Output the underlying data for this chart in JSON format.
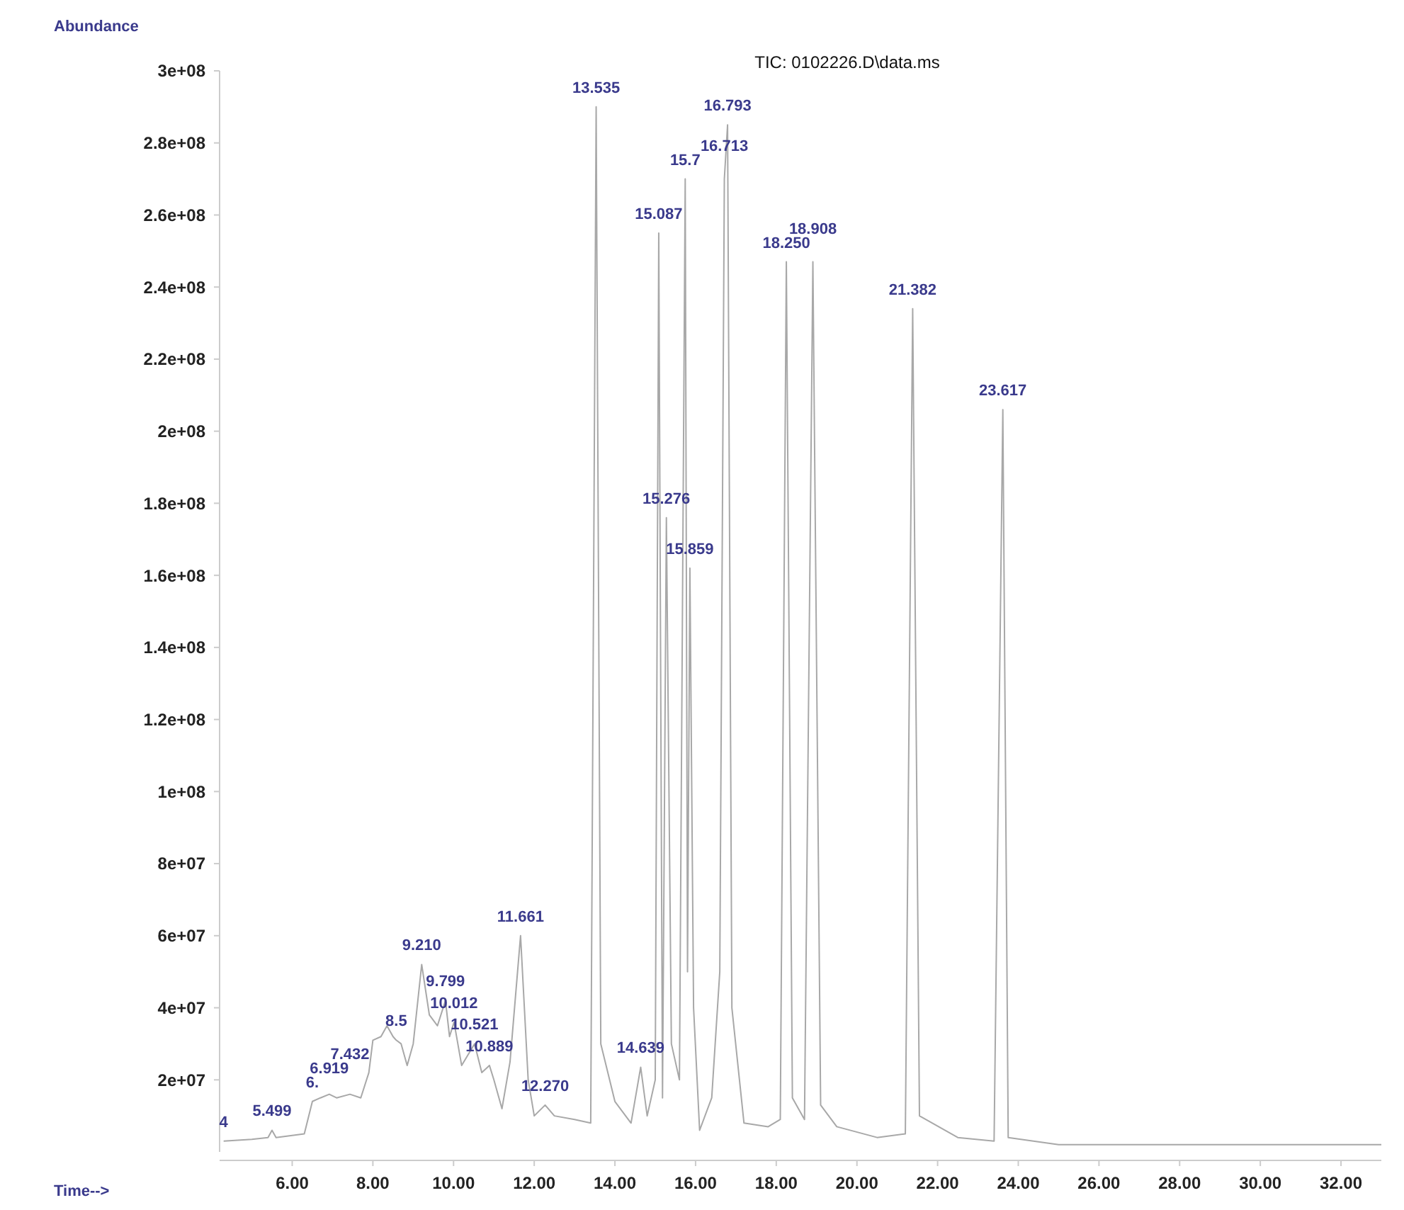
{
  "chart_data": {
    "type": "line",
    "title": "TIC: 0102226.D\\data.ms",
    "xlabel": "Time-->",
    "ylabel": "Abundance",
    "xlim": [
      4.2,
      33
    ],
    "ylim": [
      0,
      300000000
    ],
    "xticks": [
      {
        "value": 6,
        "label": "6.00"
      },
      {
        "value": 8,
        "label": "8.00"
      },
      {
        "value": 10,
        "label": "10.00"
      },
      {
        "value": 12,
        "label": "12.00"
      },
      {
        "value": 14,
        "label": "14.00"
      },
      {
        "value": 16,
        "label": "16.00"
      },
      {
        "value": 18,
        "label": "18.00"
      },
      {
        "value": 20,
        "label": "20.00"
      },
      {
        "value": 22,
        "label": "22.00"
      },
      {
        "value": 24,
        "label": "24.00"
      },
      {
        "value": 26,
        "label": "26.00"
      },
      {
        "value": 28,
        "label": "28.00"
      },
      {
        "value": 30,
        "label": "30.00"
      },
      {
        "value": 32,
        "label": "32.00"
      }
    ],
    "yticks": [
      {
        "value": 20000000,
        "label": "2e+07"
      },
      {
        "value": 40000000,
        "label": "4e+07"
      },
      {
        "value": 60000000,
        "label": "6e+07"
      },
      {
        "value": 80000000,
        "label": "8e+07"
      },
      {
        "value": 100000000,
        "label": "1e+08"
      },
      {
        "value": 120000000,
        "label": "1.2e+08"
      },
      {
        "value": 140000000,
        "label": "1.4e+08"
      },
      {
        "value": 160000000,
        "label": "1.6e+08"
      },
      {
        "value": 180000000,
        "label": "1.8e+08"
      },
      {
        "value": 200000000,
        "label": "2e+08"
      },
      {
        "value": 220000000,
        "label": "2.2e+08"
      },
      {
        "value": 240000000,
        "label": "2.4e+08"
      },
      {
        "value": 260000000,
        "label": "2.6e+08"
      },
      {
        "value": 280000000,
        "label": "2.8e+08"
      },
      {
        "value": 300000000,
        "label": "3e+08"
      }
    ],
    "grid": false,
    "series": [
      {
        "color": "#a8a8a8",
        "x": [
          4.3,
          5.0,
          5.4,
          5.499,
          5.6,
          6.3,
          6.5,
          6.7,
          6.919,
          7.1,
          7.432,
          7.7,
          7.9,
          8.0,
          8.2,
          8.35,
          8.5,
          8.58,
          8.7,
          8.85,
          9.0,
          9.21,
          9.4,
          9.6,
          9.799,
          9.9,
          10.012,
          10.2,
          10.521,
          10.7,
          10.889,
          11.0,
          11.2,
          11.4,
          11.661,
          11.85,
          12.0,
          12.27,
          12.5,
          13.0,
          13.4,
          13.535,
          13.65,
          14.0,
          14.4,
          14.639,
          14.8,
          15.0,
          15.087,
          15.18,
          15.276,
          15.4,
          15.6,
          15.743,
          15.8,
          15.859,
          15.95,
          16.1,
          16.4,
          16.6,
          16.713,
          16.793,
          16.9,
          17.2,
          17.8,
          18.1,
          18.25,
          18.4,
          18.7,
          18.908,
          19.1,
          19.5,
          20.5,
          21.2,
          21.382,
          21.55,
          22.5,
          23.4,
          23.617,
          23.75,
          25,
          33
        ],
        "values": [
          3000000,
          3500000,
          4000000,
          6000000,
          4000000,
          5000000,
          14000000,
          15000000,
          16000000,
          15000000,
          16000000,
          15000000,
          22000000,
          31000000,
          32000000,
          35000000,
          32000000,
          31000000,
          30000000,
          24000000,
          30000000,
          52000000,
          38000000,
          35000000,
          42000000,
          32000000,
          36000000,
          24000000,
          30000000,
          22000000,
          24000000,
          20000000,
          12000000,
          25000000,
          60000000,
          20000000,
          10000000,
          13000000,
          10000000,
          9000000,
          8000000,
          290000000,
          30000000,
          14000000,
          8000000,
          23500000,
          10000000,
          20000000,
          255000000,
          15000000,
          176000000,
          30000000,
          20000000,
          270000000,
          50000000,
          162000000,
          40000000,
          6000000,
          15000000,
          50000000,
          270000000,
          285000000,
          40000000,
          8000000,
          7000000,
          9000000,
          247000000,
          15000000,
          9000000,
          247000000,
          13000000,
          7000000,
          4000000,
          5000000,
          234000000,
          10000000,
          4000000,
          3000000,
          206000000,
          4000000,
          2000000,
          2000000
        ]
      }
    ],
    "annotations": [
      {
        "text": "4",
        "x": 4.3,
        "y": 3000000
      },
      {
        "text": "5.499",
        "x": 5.499,
        "y": 6000000
      },
      {
        "text": "6.",
        "x": 6.5,
        "y": 14000000
      },
      {
        "text": "6.919",
        "x": 6.919,
        "y": 16000000
      },
      {
        "text": "7.432",
        "x": 7.432,
        "y": 16000000
      },
      {
        "text": "8.5",
        "x": 8.58,
        "y": 31000000
      },
      {
        "text": "9.210",
        "x": 9.21,
        "y": 52000000
      },
      {
        "text": "9.799",
        "x": 9.799,
        "y": 42000000
      },
      {
        "text": "10.012",
        "x": 10.012,
        "y": 36000000
      },
      {
        "text": "10.521",
        "x": 10.521,
        "y": 30000000
      },
      {
        "text": "10.889",
        "x": 10.889,
        "y": 24000000
      },
      {
        "text": "11.661",
        "x": 11.661,
        "y": 60000000
      },
      {
        "text": "12.270",
        "x": 12.27,
        "y": 13000000
      },
      {
        "text": "13.535",
        "x": 13.535,
        "y": 290000000
      },
      {
        "text": "14.639",
        "x": 14.639,
        "y": 23500000
      },
      {
        "text": "15.087",
        "x": 15.087,
        "y": 255000000
      },
      {
        "text": "15.276",
        "x": 15.276,
        "y": 176000000
      },
      {
        "text": "15.7",
        "x": 15.743,
        "y": 270000000
      },
      {
        "text": "15.859",
        "x": 15.859,
        "y": 162000000
      },
      {
        "text": "16.713",
        "x": 16.713,
        "y": 270000000
      },
      {
        "text": "16.793",
        "x": 16.793,
        "y": 285000000
      },
      {
        "text": "18.250",
        "x": 18.25,
        "y": 247000000
      },
      {
        "text": "18.908",
        "x": 18.908,
        "y": 247000000
      },
      {
        "text": "21.382",
        "x": 21.382,
        "y": 234000000
      },
      {
        "text": "23.617",
        "x": 23.617,
        "y": 206000000
      }
    ]
  }
}
